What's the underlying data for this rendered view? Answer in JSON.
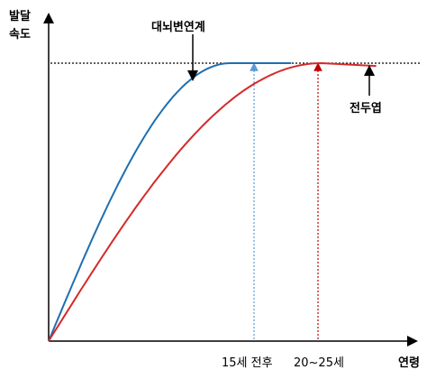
{
  "chart_data": {
    "type": "line",
    "ylabel": [
      "발달",
      "속도"
    ],
    "xlabel": "연령",
    "x_ticks": [
      "15세 전후",
      "20~25세"
    ],
    "annotations": [
      "대뇌변연계",
      "전두엽"
    ],
    "series": [
      {
        "name": "대뇌변연계",
        "color": "#1f6fb0",
        "points": [
          [
            0,
            0
          ],
          [
            15,
            100
          ],
          [
            20,
            100
          ]
        ]
      },
      {
        "name": "전두엽",
        "color": "#d42a2a",
        "points": [
          [
            0,
            0
          ],
          [
            22.5,
            100
          ],
          [
            27,
            99
          ]
        ]
      }
    ],
    "reference": {
      "y": 100,
      "style": "dotted",
      "color": "#000000"
    },
    "markers": [
      {
        "x": 15,
        "color": "#5b9bd5"
      },
      {
        "x": 22.5,
        "color": "#c00000"
      }
    ],
    "xlim": [
      0,
      30
    ],
    "ylim": [
      0,
      120
    ]
  }
}
